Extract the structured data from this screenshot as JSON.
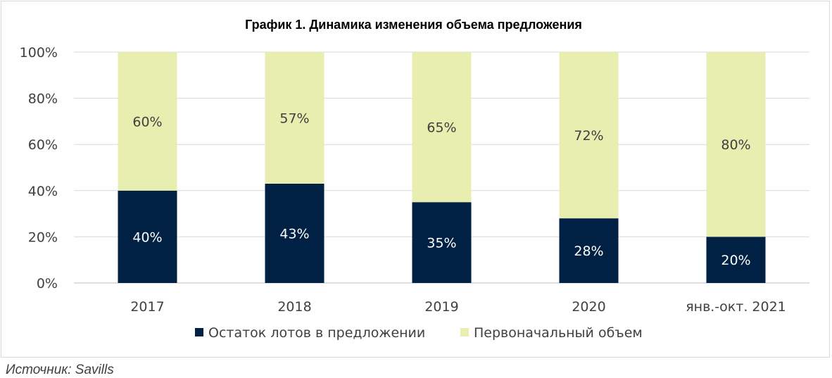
{
  "chart_data": {
    "type": "bar",
    "stacked": true,
    "title": "График 1. Динамика изменения объема предложения",
    "xlabel": "",
    "ylabel": "",
    "categories": [
      "2017",
      "2018",
      "2019",
      "2020",
      "янв.-окт. 2021"
    ],
    "series": [
      {
        "name": "Остаток лотов в предложении",
        "values": [
          40,
          43,
          35,
          28,
          20
        ],
        "labels": [
          "40%",
          "43%",
          "35%",
          "28%",
          "20%"
        ],
        "color": "#002144",
        "label_color": "#ffffff"
      },
      {
        "name": "Первоначальный объем",
        "values": [
          60,
          57,
          65,
          72,
          80
        ],
        "labels": [
          "60%",
          "57%",
          "65%",
          "72%",
          "80%"
        ],
        "color": "#e8edb0",
        "label_color": "#404040"
      }
    ],
    "ylim": [
      0,
      100
    ],
    "yticks": [
      "0%",
      "20%",
      "40%",
      "60%",
      "80%",
      "100%"
    ],
    "grid": true,
    "legend": "bottom",
    "colors": {
      "grid": "#d9d9d9",
      "axis": "#bfbfbf",
      "text": "#404040",
      "title": "#000000"
    }
  },
  "source": "Источник: Savills"
}
